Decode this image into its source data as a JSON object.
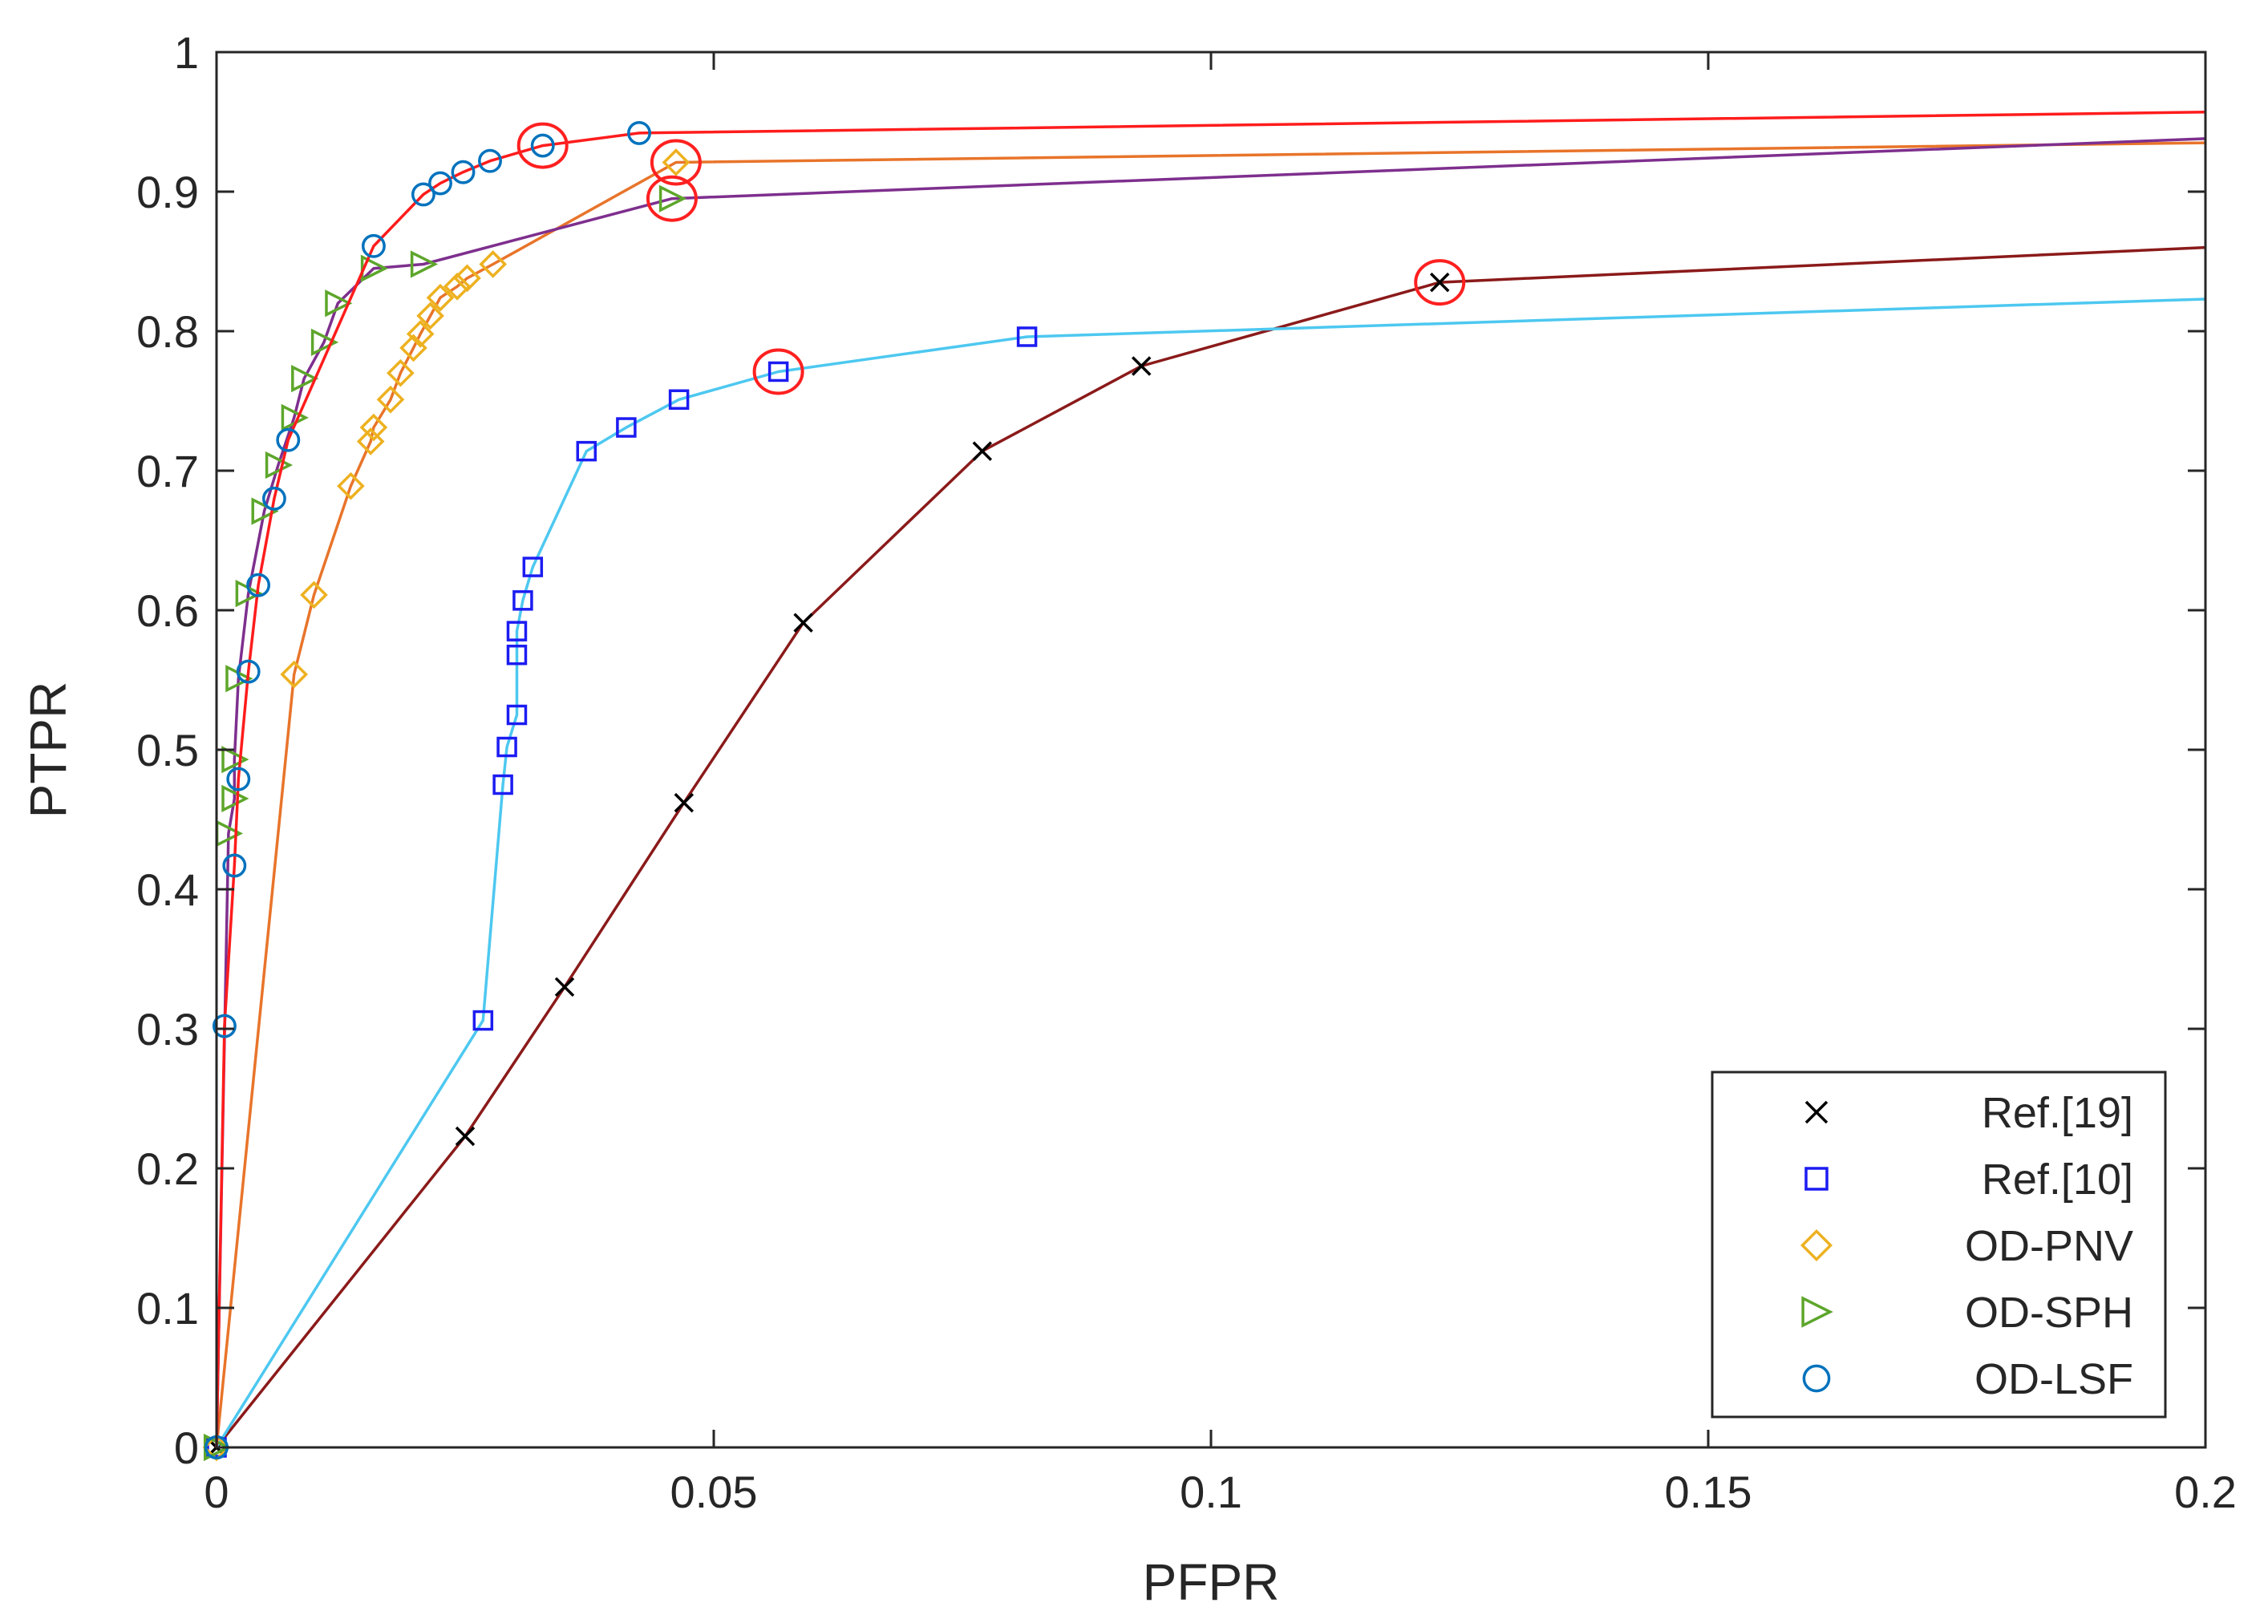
{
  "chart_data": {
    "type": "line",
    "title": "",
    "xlabel": "PFPR",
    "ylabel": "PTPR",
    "xlim": [
      0,
      0.2
    ],
    "ylim": [
      0,
      1
    ],
    "x_ticks": [
      0,
      0.05,
      0.1,
      0.15,
      0.2
    ],
    "x_tick_labels": [
      "0",
      "0.05",
      "0.1",
      "0.15",
      "0.2"
    ],
    "y_ticks": [
      0,
      0.1,
      0.2,
      0.3,
      0.4,
      0.5,
      0.6,
      0.7,
      0.8,
      0.9,
      1
    ],
    "y_tick_labels": [
      "0",
      "0.1",
      "0.2",
      "0.3",
      "0.4",
      "0.5",
      "0.6",
      "0.7",
      "0.8",
      "0.9",
      "1"
    ],
    "grid": false,
    "legend_position": "bottom-right",
    "highlight_color": "#ff2020",
    "series": [
      {
        "name": "Ref.[19]",
        "marker": "x",
        "marker_color": "#000000",
        "line_color": "#8b1a1a",
        "x": [
          0,
          0.025,
          0.035,
          0.047,
          0.059,
          0.077,
          0.093,
          0.123,
          0.2
        ],
        "y": [
          0,
          0.223,
          0.33,
          0.462,
          0.591,
          0.714,
          0.775,
          0.835,
          0.86
        ],
        "highlight_index": 7
      },
      {
        "name": "Ref.[10]",
        "marker": "square",
        "marker_color": "#1c1cf2",
        "line_color": "#4dc8f0",
        "x": [
          0,
          0.0268,
          0.0288,
          0.0292,
          0.0302,
          0.0302,
          0.0302,
          0.0308,
          0.0318,
          0.0372,
          0.0412,
          0.0465,
          0.0565,
          0.0815,
          0.2
        ],
        "y": [
          0,
          0.306,
          0.475,
          0.502,
          0.525,
          0.568,
          0.585,
          0.607,
          0.631,
          0.714,
          0.731,
          0.751,
          0.771,
          0.796,
          0.823
        ],
        "highlight_index": 12
      },
      {
        "name": "OD-PNV",
        "marker": "diamond",
        "marker_color": "#edb120",
        "line_color": "#e8742a",
        "x": [
          0,
          0.0078,
          0.0098,
          0.0135,
          0.0155,
          0.0158,
          0.0175,
          0.0185,
          0.0198,
          0.0205,
          0.0215,
          0.0225,
          0.0242,
          0.0252,
          0.0278,
          0.0462,
          0.2
        ],
        "y": [
          0,
          0.554,
          0.611,
          0.689,
          0.721,
          0.731,
          0.751,
          0.77,
          0.788,
          0.798,
          0.811,
          0.824,
          0.832,
          0.838,
          0.848,
          0.921,
          0.935
        ],
        "highlight_index": 15
      },
      {
        "name": "OD-SPH",
        "marker": "triangle-right",
        "marker_color": "#5da62b",
        "line_color": "#7e2f8e",
        "x": [
          0,
          0.0012,
          0.0018,
          0.0018,
          0.0022,
          0.0032,
          0.0048,
          0.0062,
          0.0078,
          0.0088,
          0.0108,
          0.0122,
          0.0158,
          0.0208,
          0.0458,
          0.2
        ],
        "y": [
          0,
          0.44,
          0.465,
          0.493,
          0.551,
          0.612,
          0.671,
          0.704,
          0.738,
          0.766,
          0.792,
          0.82,
          0.845,
          0.848,
          0.895,
          0.938
        ],
        "highlight_index": 14
      },
      {
        "name": "OD-LSF",
        "marker": "circle",
        "marker_color": "#0072bd",
        "line_color": "#ff1c1c",
        "x": [
          0,
          0.0008,
          0.0018,
          0.0022,
          0.0032,
          0.0042,
          0.0058,
          0.0072,
          0.0158,
          0.0208,
          0.0225,
          0.0248,
          0.0275,
          0.0328,
          0.0425,
          0.2
        ],
        "y": [
          0,
          0.302,
          0.417,
          0.479,
          0.556,
          0.618,
          0.68,
          0.722,
          0.861,
          0.898,
          0.906,
          0.914,
          0.922,
          0.933,
          0.942,
          0.957
        ],
        "highlight_index": 13
      }
    ]
  }
}
